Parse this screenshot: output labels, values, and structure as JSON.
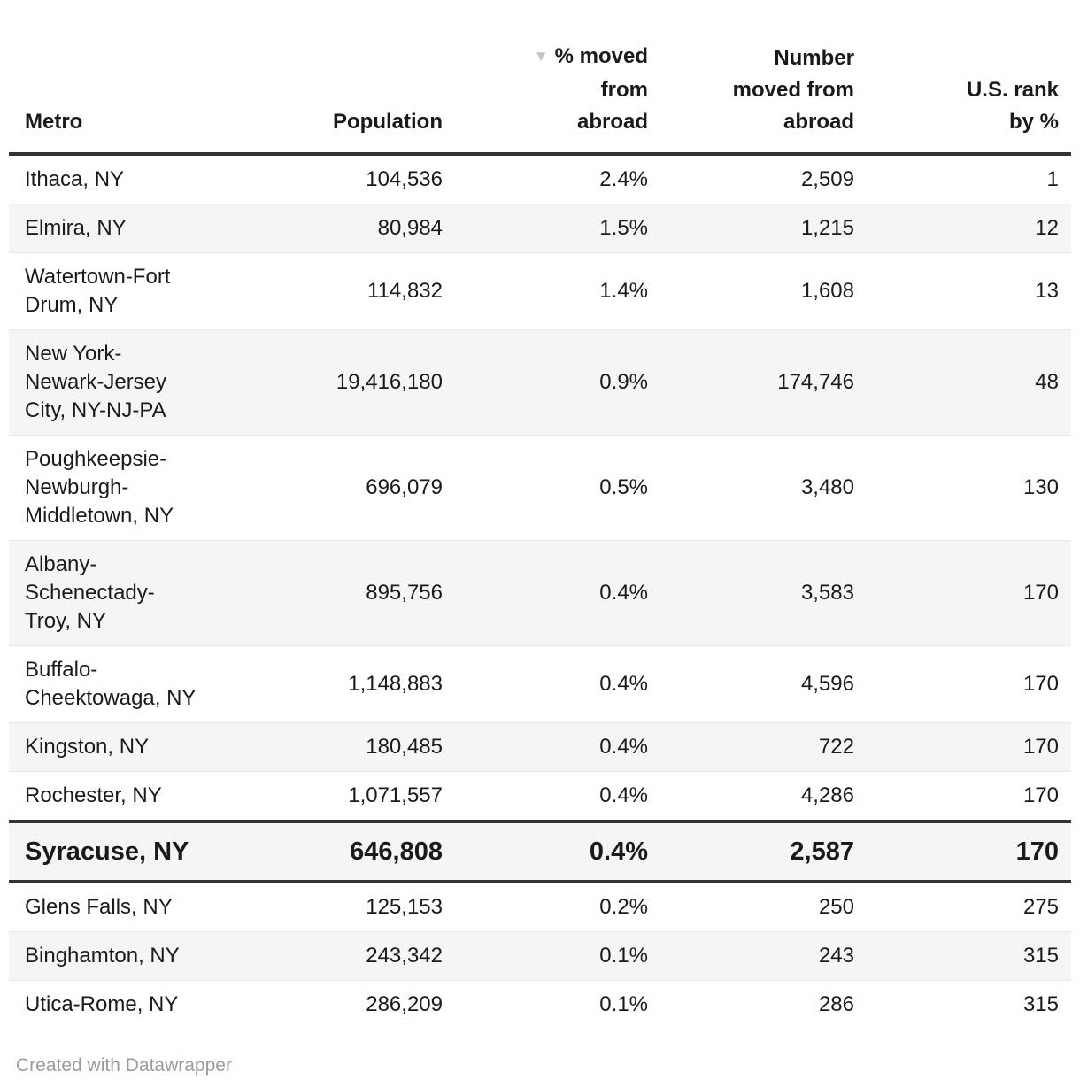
{
  "table": {
    "sort_icon": "▼",
    "columns": [
      {
        "label": "Metro",
        "align": "left",
        "sorted": false
      },
      {
        "label": "Population",
        "align": "right",
        "sorted": false
      },
      {
        "label": "% moved\nfrom\nabroad",
        "align": "right",
        "sorted": true,
        "sort_direction": "descending"
      },
      {
        "label": "Number\nmoved from\nabroad",
        "align": "right",
        "sorted": false
      },
      {
        "label": "U.S. rank\nby %",
        "align": "right",
        "sorted": false
      }
    ],
    "rows": [
      {
        "metro": "Ithaca, NY",
        "population": "104,536",
        "pct": "2.4%",
        "number": "2,509",
        "rank": "1",
        "highlight": false
      },
      {
        "metro": "Elmira, NY",
        "population": "80,984",
        "pct": "1.5%",
        "number": "1,215",
        "rank": "12",
        "highlight": false
      },
      {
        "metro": "Watertown-Fort\nDrum, NY",
        "population": "114,832",
        "pct": "1.4%",
        "number": "1,608",
        "rank": "13",
        "highlight": false
      },
      {
        "metro": "New York-\nNewark-Jersey\nCity, NY-NJ-PA",
        "population": "19,416,180",
        "pct": "0.9%",
        "number": "174,746",
        "rank": "48",
        "highlight": false
      },
      {
        "metro": "Poughkeepsie-\nNewburgh-\nMiddletown, NY",
        "population": "696,079",
        "pct": "0.5%",
        "number": "3,480",
        "rank": "130",
        "highlight": false
      },
      {
        "metro": "Albany-\nSchenectady-\nTroy, NY",
        "population": "895,756",
        "pct": "0.4%",
        "number": "3,583",
        "rank": "170",
        "highlight": false
      },
      {
        "metro": "Buffalo-\nCheektowaga, NY",
        "population": "1,148,883",
        "pct": "0.4%",
        "number": "4,596",
        "rank": "170",
        "highlight": false
      },
      {
        "metro": "Kingston, NY",
        "population": "180,485",
        "pct": "0.4%",
        "number": "722",
        "rank": "170",
        "highlight": false
      },
      {
        "metro": "Rochester, NY",
        "population": "1,071,557",
        "pct": "0.4%",
        "number": "4,286",
        "rank": "170",
        "highlight": false
      },
      {
        "metro": "Syracuse, NY",
        "population": "646,808",
        "pct": "0.4%",
        "number": "2,587",
        "rank": "170",
        "highlight": true
      },
      {
        "metro": "Glens Falls, NY",
        "population": "125,153",
        "pct": "0.2%",
        "number": "250",
        "rank": "275",
        "highlight": false
      },
      {
        "metro": "Binghamton, NY",
        "population": "243,342",
        "pct": "0.1%",
        "number": "243",
        "rank": "315",
        "highlight": false
      },
      {
        "metro": "Utica-Rome, NY",
        "population": "286,209",
        "pct": "0.1%",
        "number": "286",
        "rank": "315",
        "highlight": false
      }
    ]
  },
  "footer": {
    "credit": "Created with Datawrapper"
  },
  "colors": {
    "text": "#1a1a1a",
    "zebra_row": "#f5f5f5",
    "row_divider": "#e8e8e8",
    "strong_border": "#333333",
    "sort_icon": "#c5c5c5",
    "footer_text": "#9b9b9b"
  },
  "chart_data": {
    "type": "table",
    "title": "",
    "columns": [
      "Metro",
      "Population",
      "% moved from abroad",
      "Number moved from abroad",
      "U.S. rank by %"
    ],
    "sorted_by": "% moved from abroad",
    "sort_order": "descending",
    "highlighted_row": "Syracuse, NY",
    "rows": [
      [
        "Ithaca, NY",
        104536,
        2.4,
        2509,
        1
      ],
      [
        "Elmira, NY",
        80984,
        1.5,
        1215,
        12
      ],
      [
        "Watertown-Fort Drum, NY",
        114832,
        1.4,
        1608,
        13
      ],
      [
        "New York-Newark-Jersey City, NY-NJ-PA",
        19416180,
        0.9,
        174746,
        48
      ],
      [
        "Poughkeepsie-Newburgh-Middletown, NY",
        696079,
        0.5,
        3480,
        130
      ],
      [
        "Albany-Schenectady-Troy, NY",
        895756,
        0.4,
        3583,
        170
      ],
      [
        "Buffalo-Cheektowaga, NY",
        1148883,
        0.4,
        4596,
        170
      ],
      [
        "Kingston, NY",
        180485,
        0.4,
        722,
        170
      ],
      [
        "Rochester, NY",
        1071557,
        0.4,
        4286,
        170
      ],
      [
        "Syracuse, NY",
        646808,
        0.4,
        2587,
        170
      ],
      [
        "Glens Falls, NY",
        125153,
        0.2,
        250,
        275
      ],
      [
        "Binghamton, NY",
        243342,
        0.1,
        243,
        315
      ],
      [
        "Utica-Rome, NY",
        286209,
        0.1,
        286,
        315
      ]
    ]
  }
}
